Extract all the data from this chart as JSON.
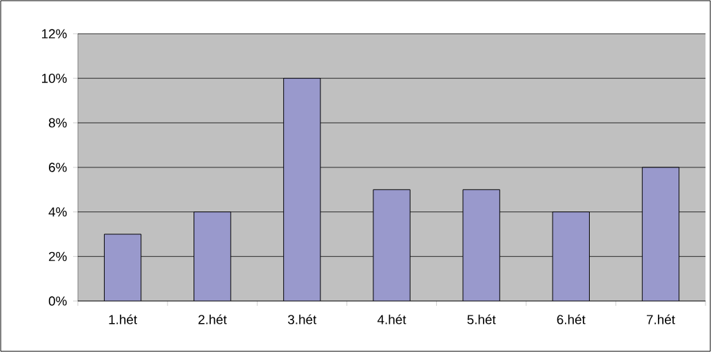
{
  "chart_data": {
    "type": "bar",
    "categories": [
      "1.hét",
      "2.hét",
      "3.hét",
      "4.hét",
      "5.hét",
      "6.hét",
      "7.hét"
    ],
    "values": [
      3,
      4,
      10,
      5,
      5,
      4,
      6
    ],
    "color": "#9999cc",
    "ylim": [
      0,
      12
    ],
    "yticks": [
      {
        "value": 0,
        "label": "0%"
      },
      {
        "value": 2,
        "label": "2%"
      },
      {
        "value": 4,
        "label": "4%"
      },
      {
        "value": 6,
        "label": "6%"
      },
      {
        "value": 8,
        "label": "8%"
      },
      {
        "value": 10,
        "label": "10%"
      },
      {
        "value": 12,
        "label": "12%"
      }
    ],
    "grid": "y"
  }
}
